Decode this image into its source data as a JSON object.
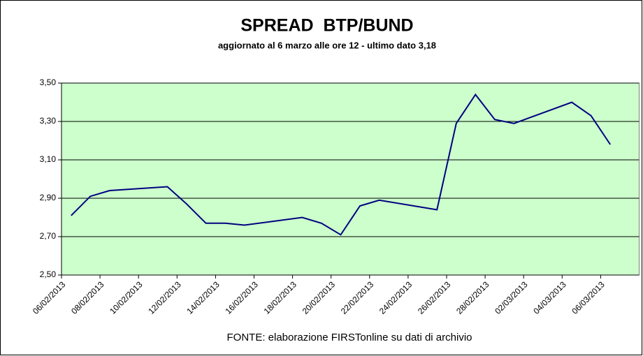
{
  "chart_data": {
    "type": "line",
    "title": "SPREAD  BTP/BUND",
    "subtitle": "aggiornato al 6 marzo alle ore 12 - ultimo dato 3,18",
    "x_label": "FONTE: elaborazione FIRSTonline su dati di archivio",
    "x": [
      "06/02/2013",
      "07/02/2013",
      "08/02/2013",
      "11/02/2013",
      "12/02/2013",
      "13/02/2013",
      "14/02/2013",
      "15/02/2013",
      "18/02/2013",
      "19/02/2013",
      "20/02/2013",
      "21/02/2013",
      "22/02/2013",
      "25/02/2013",
      "26/02/2013",
      "27/02/2013",
      "28/02/2013",
      "01/03/2013",
      "04/03/2013",
      "05/03/2013",
      "06/03/2013"
    ],
    "values": [
      2.81,
      2.91,
      2.94,
      2.96,
      2.87,
      2.77,
      2.77,
      2.76,
      2.8,
      2.77,
      2.71,
      2.86,
      2.89,
      2.84,
      3.29,
      3.44,
      3.31,
      3.29,
      3.4,
      3.33,
      3.18
    ],
    "color": "#000080",
    "xlim": [
      "06/02/2013",
      "07/03/2013"
    ],
    "xticks": [
      "06/02/2013",
      "08/02/2013",
      "10/02/2013",
      "12/02/2013",
      "14/02/2013",
      "16/02/2013",
      "18/02/2013",
      "20/02/2013",
      "22/02/2013",
      "24/02/2013",
      "26/02/2013",
      "28/02/2013",
      "02/03/2013",
      "04/03/2013",
      "06/03/2013"
    ],
    "ylim": [
      2.5,
      3.5
    ],
    "yticks": [
      {
        "value": 2.5,
        "label": "2,50"
      },
      {
        "value": 2.7,
        "label": "2,70"
      },
      {
        "value": 2.9,
        "label": "2,90"
      },
      {
        "value": 3.1,
        "label": "3,10"
      },
      {
        "value": 3.3,
        "label": "3,30"
      },
      {
        "value": 3.5,
        "label": "3,50"
      }
    ],
    "grid": true,
    "plot_background": "#ccffcc"
  }
}
